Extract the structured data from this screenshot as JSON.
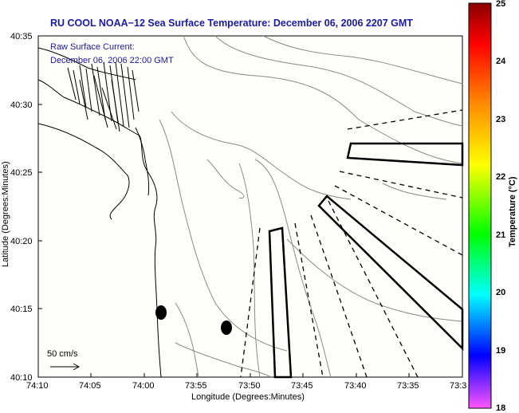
{
  "title": "RU COOL  NOAA−12  Sea Surface Temperature:  December 06, 2006 2207 GMT",
  "annotation": {
    "line1": "Raw Surface Current:",
    "line2": "December 06, 2006 22:00 GMT"
  },
  "scale_label": "50 cm/s",
  "axes": {
    "xlabel": "Longitude (Degrees:Minutes)",
    "ylabel": "Latitude (Degrees:Minutes)",
    "xticks": [
      "74:10",
      "74:05",
      "74:00",
      "73:55",
      "73:50",
      "73:45",
      "73:40",
      "73:35",
      "73:3"
    ],
    "yticks": [
      "40:35",
      "40:30",
      "40:25",
      "40:20",
      "40:15",
      "40:10"
    ]
  },
  "colorbar": {
    "label": "Temperature (°C)",
    "ticks": [
      "25",
      "24",
      "23",
      "22",
      "21",
      "20",
      "19",
      "18"
    ],
    "colors": [
      "#8b0000",
      "#ff0000",
      "#ff8c00",
      "#ffff00",
      "#00ff00",
      "#00ffff",
      "#0000ff",
      "#ff55ff"
    ]
  }
}
